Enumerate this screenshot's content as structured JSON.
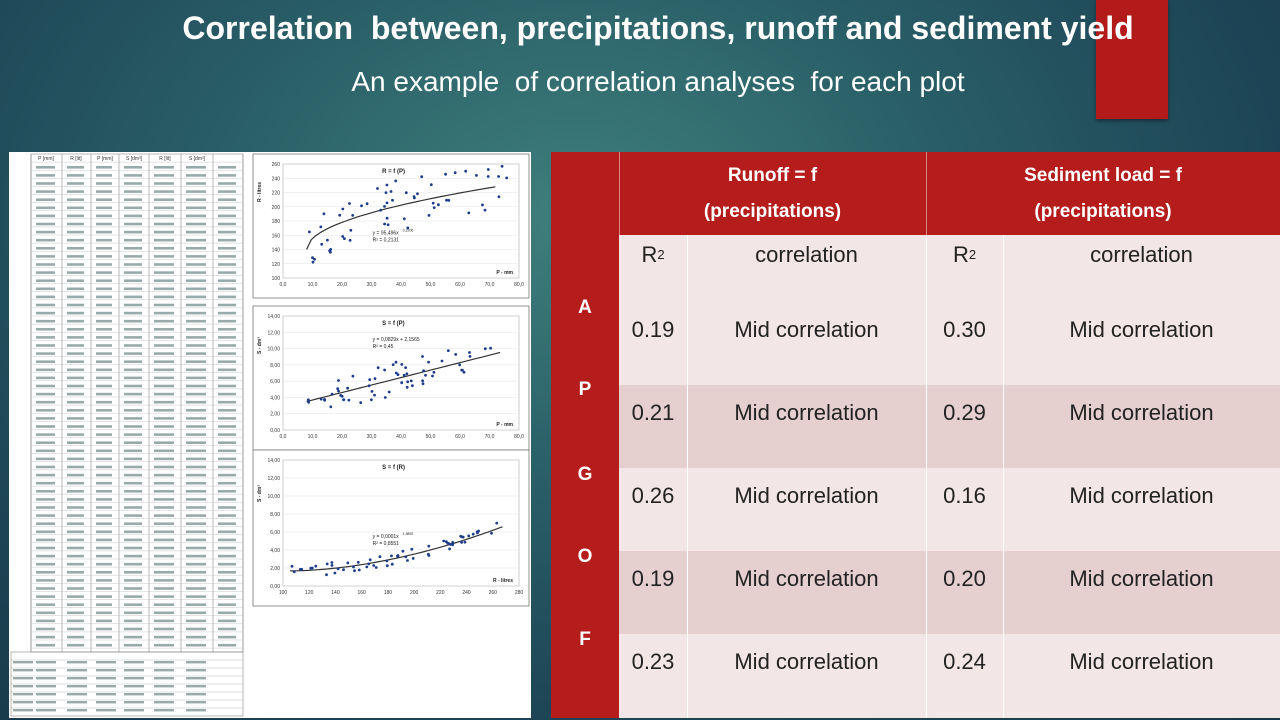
{
  "title": "Correlation  between, precipitations, runoff and sediment yield",
  "subtitle": "An example  of correlation analyses  for each plot",
  "colors": {
    "accent": "#b51d1d",
    "row_light": "#f3e6e6",
    "row_dark": "#e6cfcf"
  },
  "table": {
    "header": {
      "runoff_line1": "Runoff = f",
      "runoff_line2": "(precipitations)",
      "sediment_line1": "Sediment load = f",
      "sediment_line2": "(precipitations)"
    },
    "side_letters": [
      "A",
      "P",
      "G",
      "O",
      "F"
    ],
    "subheader": {
      "r": "R",
      "sq": "2",
      "correlation": "correlation"
    },
    "rows": [
      {
        "r2a": "0.19",
        "ca": "Mid correlation",
        "r2b": "0.30",
        "cb": "Mid correlation"
      },
      {
        "r2a": "0.21",
        "ca": "Mid correlation",
        "r2b": "0.29",
        "cb": "Mid correlation"
      },
      {
        "r2a": "0.26",
        "ca": "Mid correlation",
        "r2b": "0.16",
        "cb": "Mid correlation"
      },
      {
        "r2a": "0.19",
        "ca": "Mid correlation",
        "r2b": "0.20",
        "cb": "Mid correlation"
      },
      {
        "r2a": "0.23",
        "ca": "Mid correlation",
        "r2b": "0.24",
        "cb": "Mid correlation"
      }
    ]
  },
  "scan": {
    "col_headers": [
      "P [mm]",
      "R [lit]",
      "P [mm]",
      "S [dm³]",
      "R [lit]",
      "S [dm³]"
    ],
    "charts": [
      {
        "title": "R = f (P)",
        "equation": "y = 95,496x",
        "exponent": "0,2206",
        "r2": "R² = 0,2131",
        "xlabel": "P - mm",
        "ylabel": "R - litres",
        "yticks": [
          "260",
          "240",
          "220",
          "200",
          "180",
          "160",
          "140",
          "120",
          "100"
        ],
        "xticks": [
          "0,0",
          "10,0",
          "20,0",
          "30,0",
          "40,0",
          "50,0",
          "60,0",
          "70,0",
          "80,0"
        ]
      },
      {
        "title": "S = f (P)",
        "equation": "y = 0,0829x + 2,1565",
        "r2": "R² = 0,45",
        "xlabel": "P - mm",
        "ylabel": "S - dm³",
        "yticks": [
          "14,00",
          "12,00",
          "10,00",
          "8,00",
          "6,00",
          "4,00",
          "2,00",
          "0,00"
        ],
        "xticks": [
          "0,0",
          "10,0",
          "20,0",
          "30,0",
          "40,0",
          "50,0",
          "60,0",
          "70,0",
          "80,0"
        ]
      },
      {
        "title": "S = f (R)",
        "equation": "y = 0,0001x",
        "exponent": "1,9892",
        "r2": "R² = 0,8551",
        "xlabel": "R - litres",
        "ylabel": "S - dm³",
        "yticks": [
          "14,00",
          "12,00",
          "10,00",
          "8,00",
          "6,00",
          "4,00",
          "2,00",
          "0,00"
        ],
        "xticks": [
          "100",
          "120",
          "140",
          "160",
          "180",
          "200",
          "220",
          "240",
          "260",
          "280"
        ]
      }
    ]
  }
}
